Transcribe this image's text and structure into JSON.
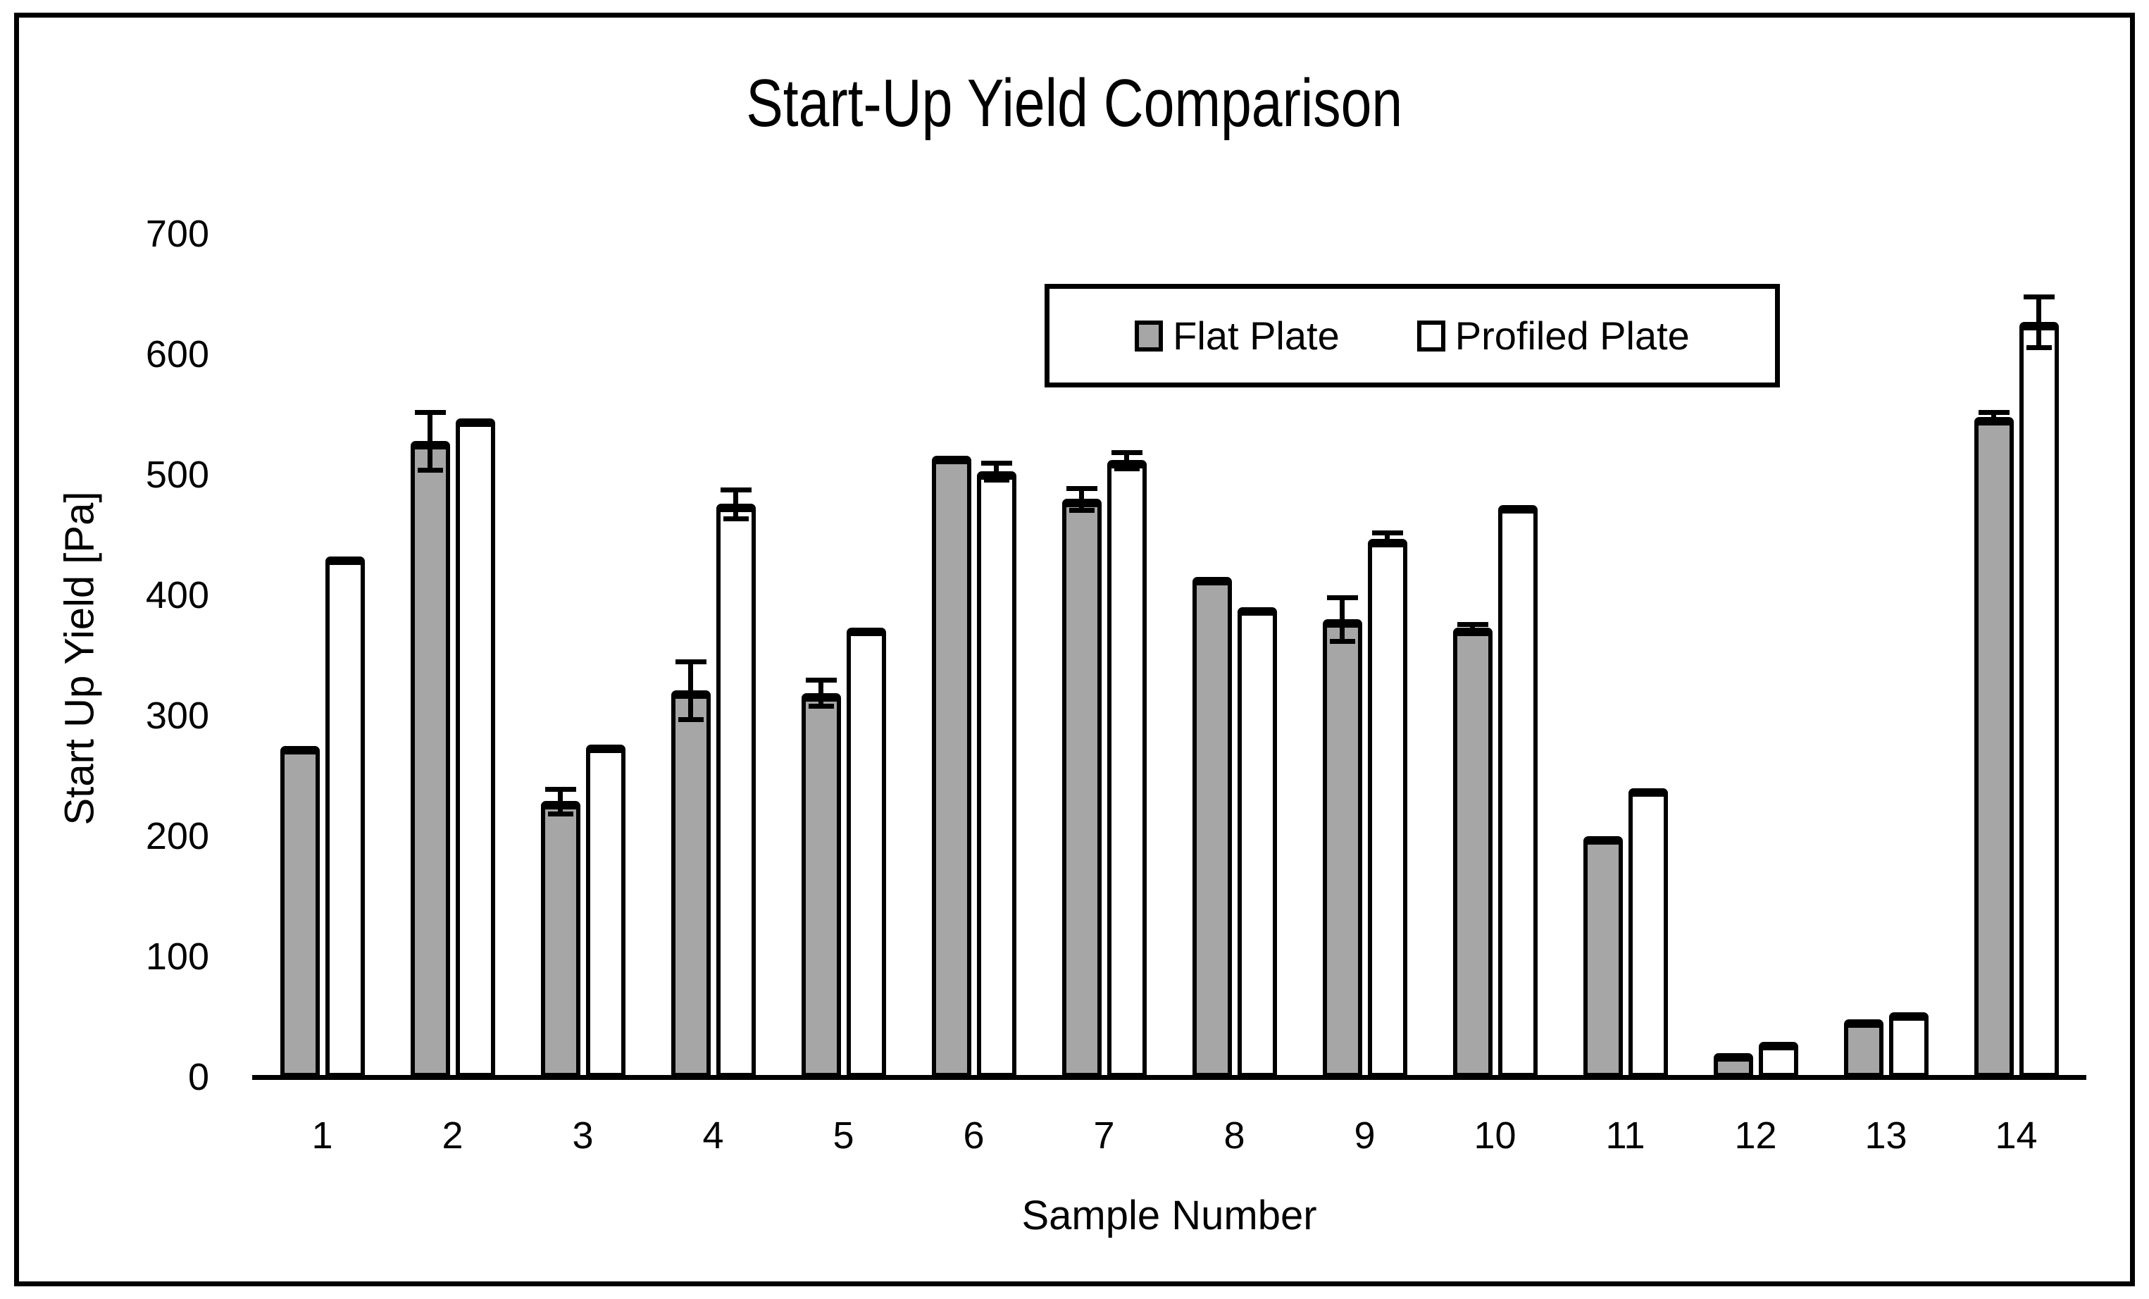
{
  "title": "Start-Up Yield Comparison",
  "colors": {
    "flat_plate_fill": "#A6A6A6",
    "profiled_plate_fill": "#FFFFFF",
    "outline": "#000000",
    "background": "#FFFFFF"
  },
  "chart_data": {
    "type": "bar",
    "title": "Start-Up Yield Comparison",
    "xlabel": "Sample Number",
    "ylabel": "Start Up Yield [Pa]",
    "ylim": [
      0,
      700
    ],
    "yticks": [
      0,
      100,
      200,
      300,
      400,
      500,
      600,
      700
    ],
    "grid": false,
    "legend_position": "inside-top-right",
    "categories": [
      "1",
      "2",
      "3",
      "4",
      "5",
      "6",
      "7",
      "8",
      "9",
      "10",
      "11",
      "12",
      "13",
      "14"
    ],
    "series": [
      {
        "name": "Flat Plate",
        "color": "#A6A6A6",
        "values": [
          275,
          528,
          229,
          321,
          319,
          516,
          480,
          415,
          380,
          373,
          200,
          20,
          48,
          548
        ],
        "errors": [
          null,
          24,
          10,
          24,
          11,
          null,
          9,
          null,
          18,
          3,
          null,
          null,
          null,
          4
        ]
      },
      {
        "name": "Profiled Plate",
        "color": "#FFFFFF",
        "values": [
          432,
          547,
          276,
          476,
          373,
          503,
          512,
          390,
          447,
          475,
          240,
          29,
          54,
          627
        ],
        "errors": [
          null,
          null,
          null,
          12,
          null,
          7,
          7,
          null,
          5,
          null,
          null,
          null,
          null,
          21
        ]
      }
    ]
  }
}
